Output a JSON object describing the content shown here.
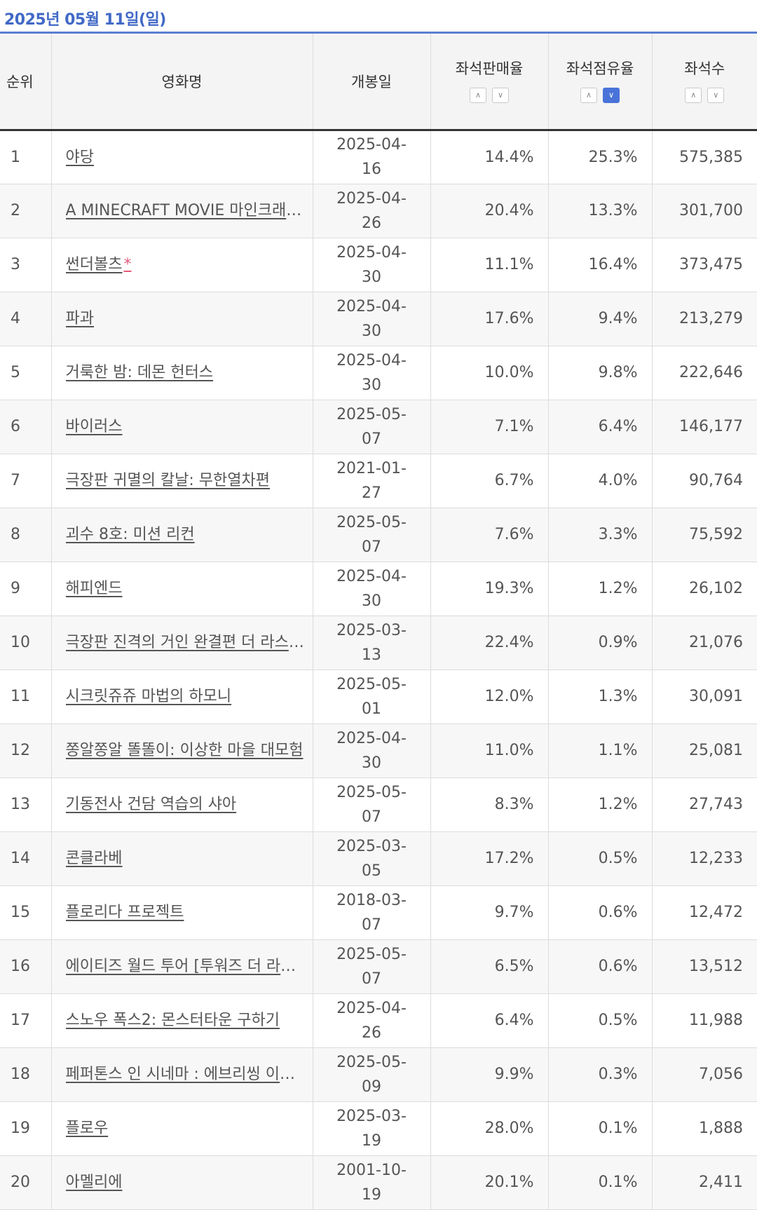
{
  "header": {
    "date_label": "2025년 05월 11일(일)"
  },
  "columns": {
    "rank": "순위",
    "title": "영화명",
    "release": "개봉일",
    "seat_sale_rate": "좌석판매율",
    "seat_share": "좌석점유율",
    "seats": "좌석수"
  },
  "sort": {
    "up_icon": "chevron-up-icon",
    "down_icon": "chevron-down-icon",
    "up_glyph": "∧",
    "down_glyph": "∨",
    "active_column": "seat_share",
    "active_direction": "desc",
    "active_color": "#4a73d9"
  },
  "rows": [
    {
      "rank": "1",
      "title": "야당",
      "release": "2025-04-16",
      "sale": "14.4%",
      "share": "25.3%",
      "seats": "575,385",
      "star": ""
    },
    {
      "rank": "2",
      "title": "A MINECRAFT MOVIE 마인크래프트 무비",
      "release": "2025-04-26",
      "sale": "20.4%",
      "share": "13.3%",
      "seats": "301,700",
      "star": ""
    },
    {
      "rank": "3",
      "title": "썬더볼츠",
      "release": "2025-04-30",
      "sale": "11.1%",
      "share": "16.4%",
      "seats": "373,475",
      "star": "*"
    },
    {
      "rank": "4",
      "title": "파과",
      "release": "2025-04-30",
      "sale": "17.6%",
      "share": "9.4%",
      "seats": "213,279",
      "star": ""
    },
    {
      "rank": "5",
      "title": "거룩한 밤: 데몬 헌터스",
      "release": "2025-04-30",
      "sale": "10.0%",
      "share": "9.8%",
      "seats": "222,646",
      "star": ""
    },
    {
      "rank": "6",
      "title": "바이러스",
      "release": "2025-05-07",
      "sale": "7.1%",
      "share": "6.4%",
      "seats": "146,177",
      "star": ""
    },
    {
      "rank": "7",
      "title": "극장판 귀멸의 칼날: 무한열차편",
      "release": "2021-01-27",
      "sale": "6.7%",
      "share": "4.0%",
      "seats": "90,764",
      "star": ""
    },
    {
      "rank": "8",
      "title": "괴수 8호: 미션 리컨",
      "release": "2025-05-07",
      "sale": "7.6%",
      "share": "3.3%",
      "seats": "75,592",
      "star": ""
    },
    {
      "rank": "9",
      "title": "해피엔드",
      "release": "2025-04-30",
      "sale": "19.3%",
      "share": "1.2%",
      "seats": "26,102",
      "star": ""
    },
    {
      "rank": "10",
      "title": "극장판 진격의 거인 완결편 더 라스트 어택",
      "release": "2025-03-13",
      "sale": "22.4%",
      "share": "0.9%",
      "seats": "21,076",
      "star": ""
    },
    {
      "rank": "11",
      "title": "시크릿쥬쥬 마법의 하모니",
      "release": "2025-05-01",
      "sale": "12.0%",
      "share": "1.3%",
      "seats": "30,091",
      "star": ""
    },
    {
      "rank": "12",
      "title": "쫑알쫑알 똘똘이: 이상한 마을 대모험",
      "release": "2025-04-30",
      "sale": "11.0%",
      "share": "1.1%",
      "seats": "25,081",
      "star": ""
    },
    {
      "rank": "13",
      "title": "기동전사 건담 역습의 샤아",
      "release": "2025-05-07",
      "sale": "8.3%",
      "share": "1.2%",
      "seats": "27,743",
      "star": ""
    },
    {
      "rank": "14",
      "title": "콘클라베",
      "release": "2025-03-05",
      "sale": "17.2%",
      "share": "0.5%",
      "seats": "12,233",
      "star": ""
    },
    {
      "rank": "15",
      "title": "플로리다 프로젝트",
      "release": "2018-03-07",
      "sale": "9.7%",
      "share": "0.6%",
      "seats": "12,472",
      "star": ""
    },
    {
      "rank": "16",
      "title": "에이티즈 월드 투어 [투워즈 더 라이트 : 윌 투 파워] 인 시네마",
      "release": "2025-05-07",
      "sale": "6.5%",
      "share": "0.6%",
      "seats": "13,512",
      "star": ""
    },
    {
      "rank": "17",
      "title": "스노우 폭스2: 몬스터타운 구하기",
      "release": "2025-04-26",
      "sale": "6.4%",
      "share": "0.5%",
      "seats": "11,988",
      "star": ""
    },
    {
      "rank": "18",
      "title": "페퍼톤스 인 시네마 : 에브리씽 이즈 파인",
      "release": "2025-05-09",
      "sale": "9.9%",
      "share": "0.3%",
      "seats": "7,056",
      "star": ""
    },
    {
      "rank": "19",
      "title": "플로우",
      "release": "2025-03-19",
      "sale": "28.0%",
      "share": "0.1%",
      "seats": "1,888",
      "star": ""
    },
    {
      "rank": "20",
      "title": "아멜리에",
      "release": "2001-10-19",
      "sale": "20.1%",
      "share": "0.1%",
      "seats": "2,411",
      "star": ""
    }
  ]
}
